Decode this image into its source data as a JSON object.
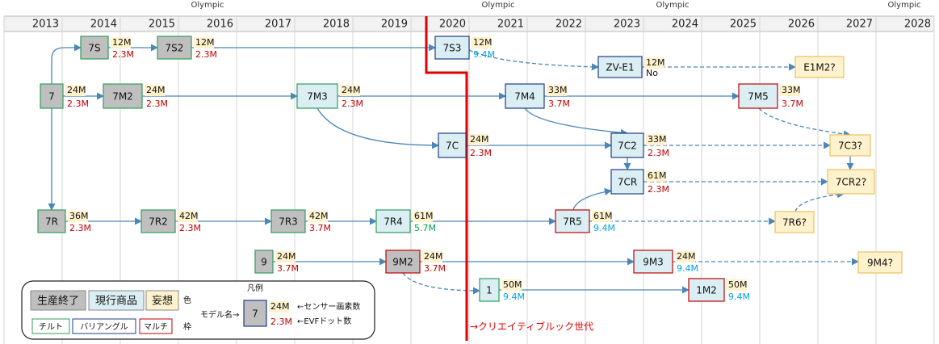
{
  "olympic_labels": [
    "Olympic",
    "Olympic",
    "Olympic",
    "Olympic"
  ],
  "years": [
    "2013",
    "2014",
    "2015",
    "2016",
    "2017",
    "2018",
    "2019",
    "2020",
    "2021",
    "2022",
    "2023",
    "2024",
    "2025",
    "2026",
    "2027",
    "2028"
  ],
  "nodes": [
    {
      "label": "7S",
      "sensor": "12M",
      "evf": "2.3M"
    },
    {
      "label": "7S2",
      "sensor": "12M",
      "evf": "2.3M"
    },
    {
      "label": "7S3",
      "sensor": "12M",
      "evf": "9.4M"
    },
    {
      "label": "ZV-E1",
      "sensor": "12M",
      "evf": "No"
    },
    {
      "label": "E1M2?"
    },
    {
      "label": "7",
      "sensor": "24M",
      "evf": "2.3M"
    },
    {
      "label": "7M2",
      "sensor": "24M",
      "evf": "2.3M"
    },
    {
      "label": "7M3",
      "sensor": "24M",
      "evf": "2.3M"
    },
    {
      "label": "7M4",
      "sensor": "33M",
      "evf": "3.7M"
    },
    {
      "label": "7M5",
      "sensor": "33M",
      "evf": "3.7M"
    },
    {
      "label": "7C",
      "sensor": "24M",
      "evf": "2.3M"
    },
    {
      "label": "7C2",
      "sensor": "33M",
      "evf": "2.3M"
    },
    {
      "label": "7C3?"
    },
    {
      "label": "7CR",
      "sensor": "61M",
      "evf": "2.3M"
    },
    {
      "label": "7CR2?"
    },
    {
      "label": "7R",
      "sensor": "36M",
      "evf": "2.3M"
    },
    {
      "label": "7R2",
      "sensor": "42M",
      "evf": "2.3M"
    },
    {
      "label": "7R3",
      "sensor": "42M",
      "evf": "3.7M"
    },
    {
      "label": "7R4",
      "sensor": "61M",
      "evf": "5.7M"
    },
    {
      "label": "7R5",
      "sensor": "61M",
      "evf": "9.4M"
    },
    {
      "label": "7R6?"
    },
    {
      "label": "9",
      "sensor": "24M",
      "evf": "3.7M"
    },
    {
      "label": "9M2",
      "sensor": "24M",
      "evf": "3.7M"
    },
    {
      "label": "9M3",
      "sensor": "24M",
      "evf": "9.4M"
    },
    {
      "label": "9M4?"
    },
    {
      "label": "1",
      "sensor": "50M",
      "evf": "9.4M"
    },
    {
      "label": "1M2",
      "sensor": "50M",
      "evf": "9.4M"
    }
  ],
  "annotation": "→クリエイティブルック世代",
  "legend": {
    "title": "凡例",
    "status": [
      "生産終了",
      "現行商品",
      "妄想"
    ],
    "color_label": "色",
    "frame": [
      "チルト",
      "バリアングル",
      "マルチ"
    ],
    "frame_label": "枠",
    "example": {
      "caption": "モデル名→",
      "label": "7",
      "sensor": "24M",
      "evf": "2.3M",
      "sensor_note": "←センサー画素数",
      "evf_note": "←EVFドット数"
    }
  }
}
